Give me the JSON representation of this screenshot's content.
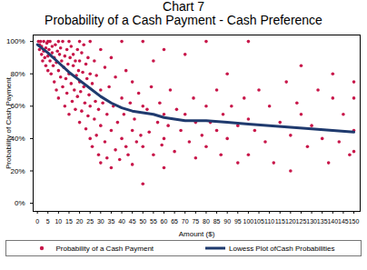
{
  "chart_data": {
    "type": "scatter",
    "title": "Chart 7",
    "subtitle": "Probability of a Cash Payment - Cash Preference",
    "x_label": "Amount ($)",
    "y_label": "Probability of Cash Payment",
    "xlim": [
      -2,
      153
    ],
    "xticks": [
      0,
      5,
      10,
      15,
      20,
      25,
      30,
      35,
      40,
      45,
      50,
      55,
      60,
      65,
      70,
      75,
      80,
      85,
      90,
      95,
      100,
      105,
      110,
      115,
      120,
      125,
      130,
      135,
      140,
      145,
      150
    ],
    "ylim": [
      -5,
      104
    ],
    "yticks": [
      {
        "value": 0,
        "label": "0%"
      },
      {
        "value": 20,
        "label": "20%"
      },
      {
        "value": 40,
        "label": "40%"
      },
      {
        "value": 60,
        "label": "60%"
      },
      {
        "value": 80,
        "label": "80%"
      },
      {
        "value": 100,
        "label": "100%"
      }
    ],
    "legend": "bottom",
    "series": [
      {
        "name": "Probability of a Cash Payment",
        "type": "scatter",
        "color": "#c8174a",
        "x": [
          0.5,
          1,
          1,
          1.5,
          2,
          2,
          2.5,
          3,
          3,
          3.5,
          4,
          4,
          4.5,
          5,
          5,
          5,
          5.5,
          6,
          6,
          6.5,
          7,
          7,
          7.5,
          8,
          8,
          8.5,
          9,
          9,
          9.5,
          10,
          10,
          10,
          10.5,
          11,
          11,
          11.5,
          12,
          12,
          12.5,
          13,
          13,
          13.5,
          14,
          14,
          14.5,
          15,
          15,
          15,
          15.5,
          16,
          16,
          16.5,
          17,
          17,
          17.5,
          18,
          18,
          18.5,
          19,
          19,
          19.5,
          20,
          20,
          20,
          20,
          20.5,
          21,
          21,
          21.5,
          22,
          22,
          22.5,
          23,
          23,
          23.5,
          24,
          24,
          24.5,
          25,
          25,
          25,
          25,
          26,
          26,
          27,
          27,
          27.5,
          28,
          28,
          29,
          29,
          30,
          30,
          30,
          30,
          31,
          32,
          32,
          33,
          33,
          34,
          35,
          35,
          35,
          36,
          37,
          37,
          38,
          39,
          40,
          40,
          40,
          41,
          42,
          42,
          43,
          44,
          45,
          45,
          45,
          46,
          47,
          48,
          49,
          50,
          50,
          50,
          50,
          52,
          53,
          54,
          55,
          55,
          57,
          58,
          59,
          60,
          60,
          60,
          60,
          62,
          63,
          65,
          66,
          68,
          70,
          70,
          72,
          74,
          75,
          75,
          78,
          80,
          80,
          80,
          82,
          85,
          85,
          87,
          88,
          90,
          90,
          92,
          95,
          95,
          98,
          100,
          100,
          100,
          103,
          105,
          108,
          110,
          112,
          115,
          118,
          120,
          120,
          123,
          125,
          125,
          128,
          130,
          133,
          135,
          138,
          140,
          140,
          143,
          145,
          148,
          150,
          150,
          150,
          150
        ],
        "values": [
          100,
          98,
          95,
          100,
          92,
          97,
          88,
          100,
          94,
          90,
          96,
          85,
          99,
          91,
          82,
          100,
          95,
          88,
          100,
          80,
          93,
          97,
          85,
          90,
          75,
          98,
          87,
          70,
          94,
          100,
          82,
          65,
          92,
          78,
          96,
          88,
          72,
          100,
          84,
          91,
          60,
          77,
          95,
          68,
          86,
          100,
          80,
          55,
          90,
          74,
          97,
          63,
          85,
          92,
          70,
          88,
          58,
          79,
          95,
          66,
          82,
          100,
          75,
          50,
          88,
          69,
          93,
          57,
          81,
          72,
          98,
          62,
          86,
          46,
          77,
          90,
          54,
          67,
          100,
          80,
          40,
          60,
          74,
          35,
          88,
          52,
          63,
          42,
          79,
          30,
          58,
          95,
          70,
          25,
          48,
          62,
          84,
          38,
          28,
          55,
          72,
          90,
          45,
          22,
          60,
          33,
          78,
          50,
          27,
          100,
          65,
          40,
          55,
          35,
          82,
          30,
          62,
          75,
          45,
          24,
          52,
          38,
          68,
          42,
          100,
          60,
          35,
          12,
          58,
          44,
          72,
          30,
          88,
          50,
          62,
          36,
          95,
          55,
          40,
          22,
          48,
          70,
          32,
          58,
          45,
          92,
          55,
          38,
          65,
          50,
          28,
          42,
          100,
          60,
          35,
          50,
          70,
          45,
          30,
          55,
          80,
          40,
          60,
          48,
          25,
          65,
          100,
          52,
          30,
          45,
          70,
          38,
          60,
          25,
          50,
          75,
          42,
          20,
          62,
          85,
          55,
          35,
          48,
          70,
          40,
          25,
          65,
          80,
          38,
          55,
          30,
          65,
          45,
          32,
          75
        ]
      },
      {
        "name": "Lowess Plot ofCash Probabilities",
        "type": "line",
        "color": "#1f3a6e",
        "x": [
          0,
          5,
          10,
          15,
          20,
          25,
          30,
          35,
          40,
          45,
          50,
          55,
          60,
          65,
          70,
          75,
          80,
          90,
          100,
          110,
          120,
          130,
          140,
          150
        ],
        "values": [
          98,
          93,
          87,
          81,
          76,
          71,
          66,
          62,
          59,
          57,
          56,
          55,
          53,
          52,
          51,
          51,
          51,
          50,
          49,
          48,
          47,
          46,
          45,
          44
        ]
      }
    ]
  }
}
